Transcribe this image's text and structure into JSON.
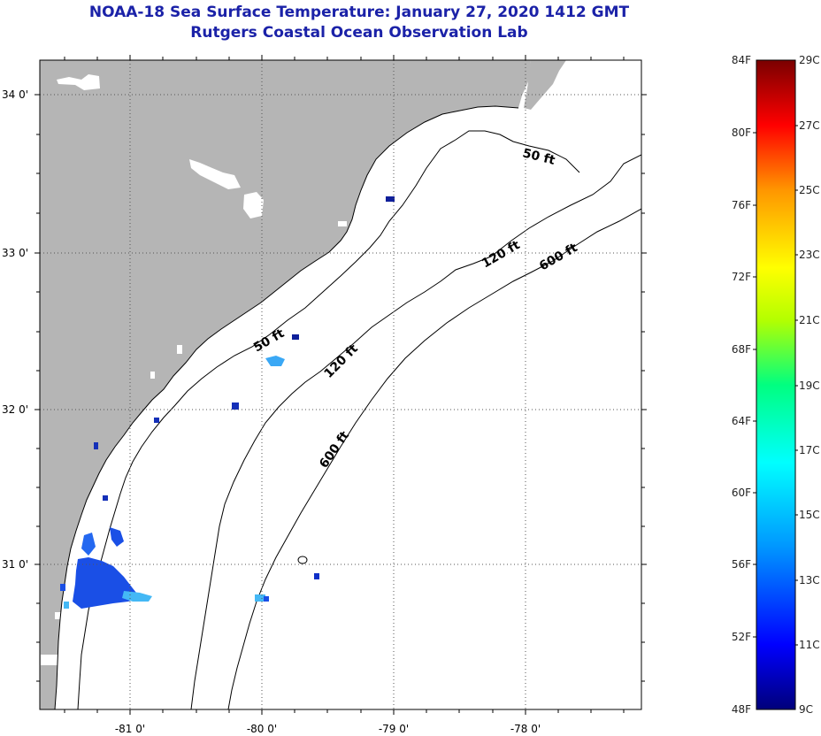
{
  "header": {
    "title": "NOAA-18 Sea Surface Temperature:  January 27, 2020 1412 GMT",
    "subtitle": "Rutgers Coastal Ocean Observation Lab"
  },
  "map": {
    "lat_labels": [
      "34 0'",
      "33 0'",
      "32 0'",
      "31 0'"
    ],
    "lon_labels": [
      "-81 0'",
      "-80 0'",
      "-79 0'",
      "-78 0'"
    ],
    "lat_range": [
      30.2,
      34.2
    ],
    "lon_range": [
      -81.7,
      -77.2
    ],
    "contour_labels": [
      {
        "text": "50 ft",
        "depth": 50
      },
      {
        "text": "50 ft",
        "depth": 50
      },
      {
        "text": "120 ft",
        "depth": 120
      },
      {
        "text": "120 ft",
        "depth": 120
      },
      {
        "text": "600 ft",
        "depth": 600
      },
      {
        "text": "600 ft",
        "depth": 600
      }
    ],
    "colors": {
      "land": "#b5b5b5",
      "ocean": "#ffffff",
      "gridline": "#555555"
    }
  },
  "colorbar": {
    "fahrenheit_labels": [
      "84F",
      "80F",
      "76F",
      "72F",
      "68F",
      "64F",
      "60F",
      "56F",
      "52F",
      "48F"
    ],
    "celsius_labels": [
      "29C",
      "27C",
      "25C",
      "23C",
      "21C",
      "19C",
      "17C",
      "15C",
      "13C",
      "11C",
      "9C"
    ],
    "scale": [
      "#00007a",
      "#0000ff",
      "#0096ff",
      "#00ffff",
      "#00ff80",
      "#b4ff00",
      "#ffff00",
      "#ff9600",
      "#ff0000",
      "#7a0000"
    ]
  }
}
